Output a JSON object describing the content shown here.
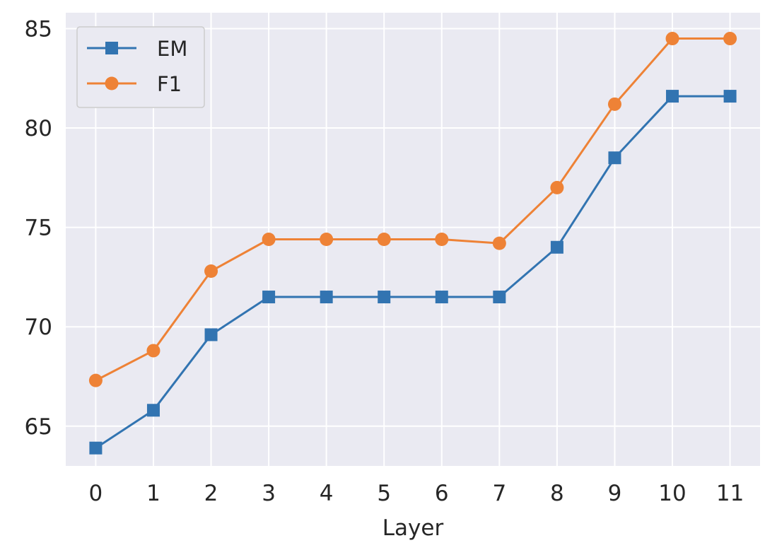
{
  "chart_data": {
    "type": "line",
    "title": "",
    "xlabel": "Layer",
    "ylabel": "",
    "x": [
      0,
      1,
      2,
      3,
      4,
      5,
      6,
      7,
      8,
      9,
      10,
      11
    ],
    "xticks": [
      "0",
      "1",
      "2",
      "3",
      "4",
      "5",
      "6",
      "7",
      "8",
      "9",
      "10",
      "11"
    ],
    "yticks": [
      "65",
      "70",
      "75",
      "80",
      "85"
    ],
    "ylim": [
      63,
      85.8
    ],
    "grid": true,
    "legend_position": "top-left",
    "series": [
      {
        "name": "EM",
        "marker": "square",
        "color": "#3274b1",
        "values": [
          63.9,
          65.8,
          69.6,
          71.5,
          71.5,
          71.5,
          71.5,
          71.5,
          74.0,
          78.5,
          81.6,
          81.6
        ]
      },
      {
        "name": "F1",
        "marker": "circle",
        "color": "#ee8236",
        "values": [
          67.3,
          68.8,
          72.8,
          74.4,
          74.4,
          74.4,
          74.4,
          74.2,
          77.0,
          81.2,
          84.5,
          84.5
        ]
      }
    ]
  }
}
